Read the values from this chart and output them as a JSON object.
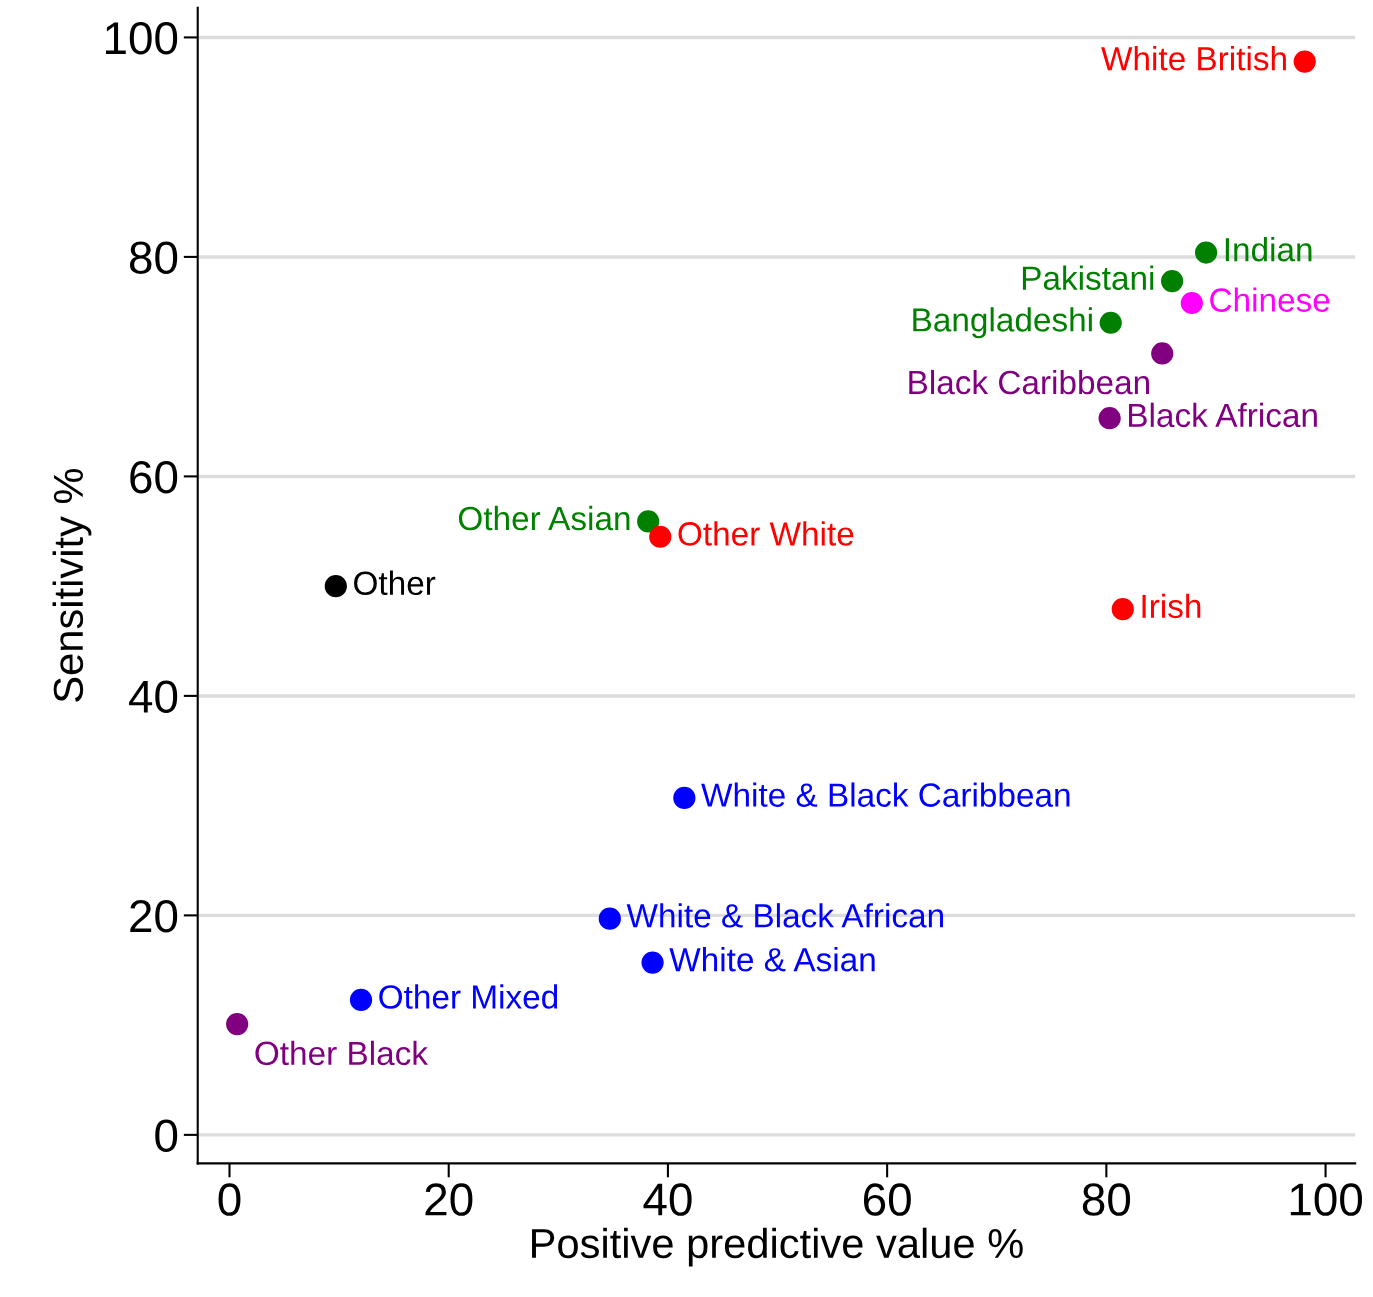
{
  "chart_data": {
    "type": "scatter",
    "xlabel": "Positive predictive value %",
    "ylabel": "Sensitivity %",
    "xlim": [
      -2.9,
      102.7
    ],
    "ylim": [
      -2.6,
      102.7
    ],
    "xticks": [
      0,
      20,
      40,
      60,
      80,
      100
    ],
    "yticks": [
      0,
      20,
      40,
      60,
      80,
      100
    ],
    "grid": "y",
    "marker": "circle",
    "series": [
      {
        "name": "White British",
        "color": "#ff0000",
        "x": [
          98.1
        ],
        "values": [
          97.8
        ]
      },
      {
        "name": "Indian",
        "color": "#008000",
        "x": [
          89.1
        ],
        "values": [
          80.4
        ]
      },
      {
        "name": "Pakistani",
        "color": "#008000",
        "x": [
          86.0
        ],
        "values": [
          77.8
        ]
      },
      {
        "name": "Chinese",
        "color": "#ff00ff",
        "x": [
          87.8
        ],
        "values": [
          75.8
        ]
      },
      {
        "name": "Bangladeshi",
        "color": "#008000",
        "x": [
          80.4
        ],
        "values": [
          74.0
        ]
      },
      {
        "name": "Black Caribbean",
        "color": "#800080",
        "x": [
          85.1
        ],
        "values": [
          71.2
        ]
      },
      {
        "name": "Black African",
        "color": "#800080",
        "x": [
          80.3
        ],
        "values": [
          65.3
        ]
      },
      {
        "name": "Other Asian",
        "color": "#008000",
        "x": [
          38.2
        ],
        "values": [
          55.9
        ]
      },
      {
        "name": "Other White",
        "color": "#ff0000",
        "x": [
          39.3
        ],
        "values": [
          54.5
        ]
      },
      {
        "name": "Other",
        "color": "#000000",
        "x": [
          9.7
        ],
        "values": [
          50.0
        ]
      },
      {
        "name": "Irish",
        "color": "#ff0000",
        "x": [
          81.5
        ],
        "values": [
          47.9
        ]
      },
      {
        "name": "White & Black Caribbean",
        "color": "#0000ff",
        "x": [
          41.5
        ],
        "values": [
          30.7
        ]
      },
      {
        "name": "White & Black African",
        "color": "#0000ff",
        "x": [
          34.7
        ],
        "values": [
          19.7
        ]
      },
      {
        "name": "White & Asian",
        "color": "#0000ff",
        "x": [
          38.6
        ],
        "values": [
          15.7
        ]
      },
      {
        "name": "Other Mixed",
        "color": "#0000ff",
        "x": [
          12.0
        ],
        "values": [
          12.3
        ]
      },
      {
        "name": "Other Black",
        "color": "#800080",
        "x": [
          0.7
        ],
        "values": [
          10.1
        ]
      }
    ]
  }
}
